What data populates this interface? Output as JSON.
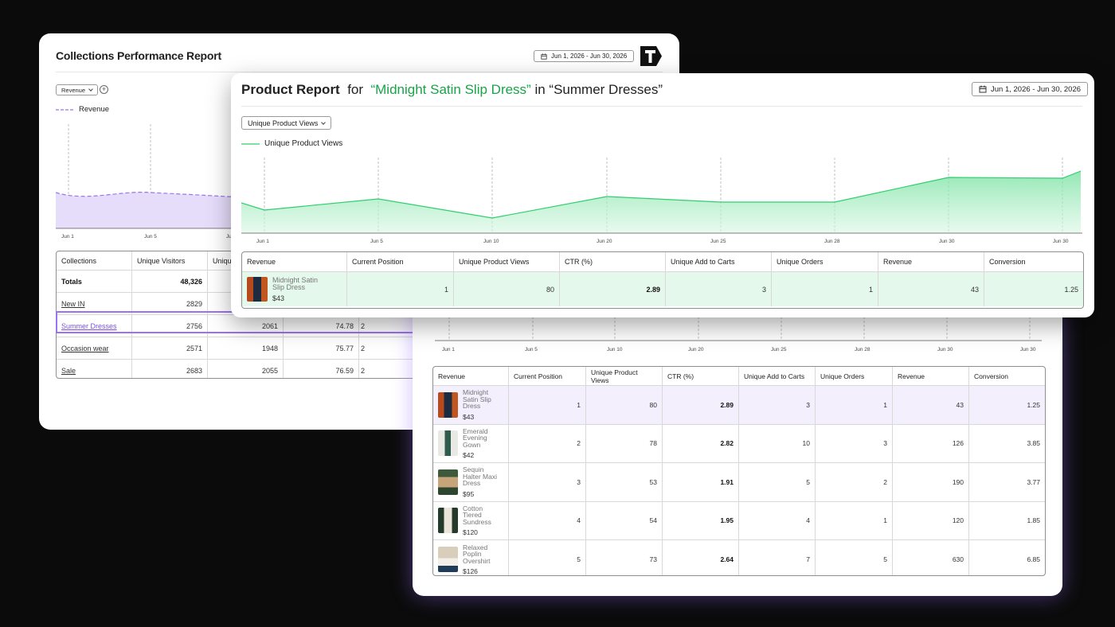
{
  "back_report": {
    "title": "Collections Performance Report",
    "date_range": "Jun 1, 2026 - Jun 30, 2026",
    "metric_select": "Revenue",
    "legend": "Revenue",
    "x_ticks": [
      "Jun 1",
      "Jun 5",
      "Jun 10"
    ],
    "table": {
      "headers": [
        "Collections",
        "Unique Visitors",
        "Unique",
        "",
        ""
      ],
      "totals": {
        "label": "Totals",
        "visitors": "48,326"
      },
      "rows": [
        {
          "name": "New IN",
          "visitors": "2829",
          "c3": "",
          "c4": "",
          "c5": ""
        },
        {
          "name": "Summer Dresses",
          "visitors": "2756",
          "c3": "2061",
          "c4": "74.78",
          "c5": "2"
        },
        {
          "name": "Occasion wear",
          "visitors": "2571",
          "c3": "1948",
          "c4": "75.77",
          "c5": "2"
        },
        {
          "name": "Sale",
          "visitors": "2683",
          "c3": "2055",
          "c4": "76.59",
          "c5": "2"
        }
      ]
    }
  },
  "front_report": {
    "title_prefix": "Product Report",
    "title_for": "for",
    "product": "“Midnight Satin Slip Dress”",
    "title_in": "in “Summer Dresses”",
    "date_range": "Jun 1, 2026 - Jun 30, 2026",
    "metric_select": "Unique Product Views",
    "legend": "Unique Product Views",
    "x_ticks": [
      "Jun 1",
      "Jun 5",
      "Jun 10",
      "Jun 20",
      "Jun 25",
      "Jun 28",
      "Jun 30",
      "Jun 30"
    ],
    "headers": [
      "Revenue",
      "Current Position",
      "Unique Product Views",
      "CTR (%)",
      "Unique Add to Carts",
      "Unique Orders",
      "Revenue",
      "Conversion"
    ],
    "row": {
      "name": "Midnight Satin Slip Dress",
      "price": "$43",
      "position": "1",
      "views": "80",
      "ctr": "2.89",
      "carts": "3",
      "orders": "1",
      "revenue": "43",
      "conversion": "1.25"
    }
  },
  "mid_report": {
    "x_ticks": [
      "Jun 1",
      "Jun 5",
      "Jun 10",
      "Jun 20",
      "Jun 25",
      "Jun 28",
      "Jun 30",
      "Jun 30"
    ],
    "headers": [
      "Revenue",
      "Current Position",
      "Unique Product Views",
      "CTR (%)",
      "Unique Add to Carts",
      "Unique Orders",
      "Revenue",
      "Conversion"
    ],
    "rows": [
      {
        "name": "Midnight Satin Slip Dress",
        "price": "$43",
        "position": "1",
        "views": "80",
        "ctr": "2.89",
        "carts": "3",
        "orders": "1",
        "revenue": "43",
        "conversion": "1.25"
      },
      {
        "name": "Emerald Evening Gown",
        "price": "$42",
        "position": "2",
        "views": "78",
        "ctr": "2.82",
        "carts": "10",
        "orders": "3",
        "revenue": "126",
        "conversion": "3.85"
      },
      {
        "name": "Sequin Halter Maxi Dress",
        "price": "$95",
        "position": "3",
        "views": "53",
        "ctr": "1.91",
        "carts": "5",
        "orders": "2",
        "revenue": "190",
        "conversion": "3.77"
      },
      {
        "name": "Cotton Tiered Sundress",
        "price": "$120",
        "position": "4",
        "views": "54",
        "ctr": "1.95",
        "carts": "4",
        "orders": "1",
        "revenue": "120",
        "conversion": "1.85"
      },
      {
        "name": "Relaxed Poplin Overshirt",
        "price": "$126",
        "position": "5",
        "views": "73",
        "ctr": "2.64",
        "carts": "7",
        "orders": "5",
        "revenue": "630",
        "conversion": "6.85"
      }
    ]
  },
  "colors": {
    "revenue_line": "#9b72f2",
    "views_line": "#2fcf6c",
    "accent_green": "#1aa34a"
  }
}
